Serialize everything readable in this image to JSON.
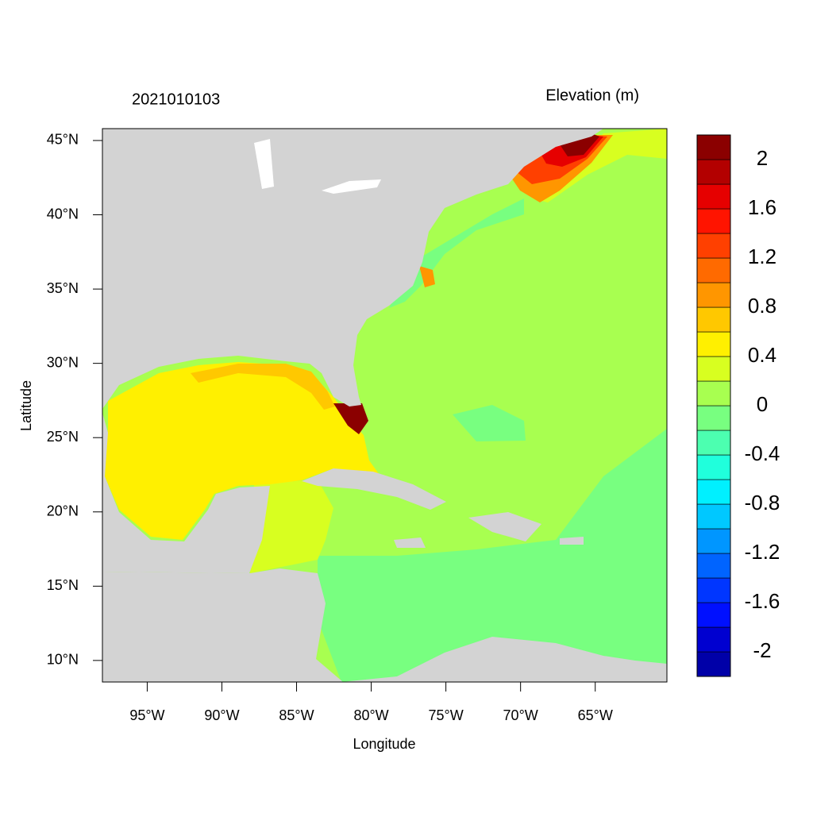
{
  "chart_data": {
    "type": "map",
    "title": "2021010103",
    "x_label": "Longitude",
    "y_label": "Latitude",
    "xlim": [
      -98,
      -60.2
    ],
    "ylim": [
      8.55,
      45.8
    ],
    "xticks": [
      {
        "value": -95,
        "label": "95°W"
      },
      {
        "value": -90,
        "label": "90°W"
      },
      {
        "value": -85,
        "label": "85°W"
      },
      {
        "value": -80,
        "label": "80°W"
      },
      {
        "value": -75,
        "label": "75°W"
      },
      {
        "value": -70,
        "label": "70°W"
      },
      {
        "value": -65,
        "label": "65°W"
      }
    ],
    "yticks": [
      {
        "value": 10,
        "label": "10°N"
      },
      {
        "value": 15,
        "label": "15°N"
      },
      {
        "value": 20,
        "label": "20°N"
      },
      {
        "value": 25,
        "label": "25°N"
      },
      {
        "value": 30,
        "label": "30°N"
      },
      {
        "value": 35,
        "label": "35°N"
      },
      {
        "value": 40,
        "label": "40°N"
      },
      {
        "value": 45,
        "label": "45°N"
      }
    ],
    "colorbar": {
      "title": "Elevation (m)",
      "levels": [
        -2.2,
        -2.0,
        -1.8,
        -1.6,
        -1.4,
        -1.2,
        -1.0,
        -0.8,
        -0.6,
        -0.4,
        -0.2,
        0,
        0.2,
        0.4,
        0.6,
        0.8,
        1.0,
        1.2,
        1.4,
        1.6,
        1.8,
        2.0,
        2.2
      ],
      "colors": [
        "#0000a8",
        "#0000d0",
        "#0010ff",
        "#0036ff",
        "#0064ff",
        "#0096ff",
        "#00c8ff",
        "#00f0ff",
        "#20ffdc",
        "#4cffb0",
        "#78ff80",
        "#a8ff50",
        "#d8ff20",
        "#fff000",
        "#ffc800",
        "#ff9600",
        "#ff6a00",
        "#ff4000",
        "#ff1400",
        "#e60000",
        "#b30000",
        "#8b0000"
      ],
      "ticks": [
        2,
        1.6,
        1.2,
        0.8,
        0.4,
        0,
        -0.4,
        -0.8,
        -1.2,
        -1.6,
        -2
      ]
    }
  }
}
